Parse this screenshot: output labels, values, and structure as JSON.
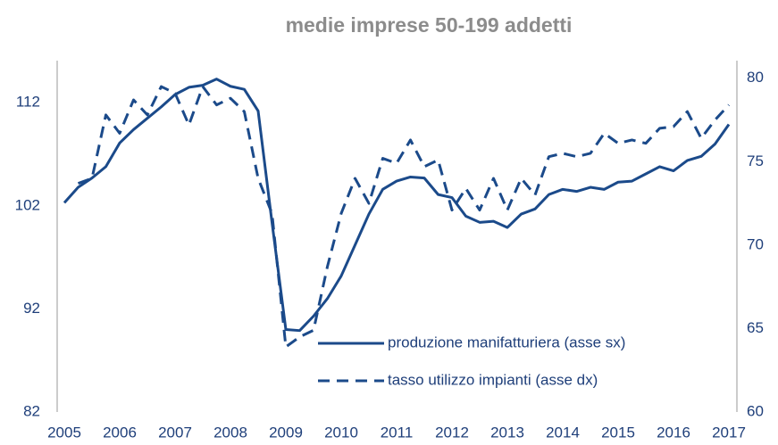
{
  "chart_data": {
    "type": "line",
    "title": "medie imprese 50-199 addetti",
    "x": [
      2005,
      2005.25,
      2005.5,
      2005.75,
      2006,
      2006.25,
      2006.5,
      2006.75,
      2007,
      2007.25,
      2007.5,
      2007.75,
      2008,
      2008.25,
      2008.5,
      2008.75,
      2009,
      2009.25,
      2009.5,
      2009.75,
      2010,
      2010.25,
      2010.5,
      2010.75,
      2011,
      2011.25,
      2011.5,
      2011.75,
      2012,
      2012.25,
      2012.5,
      2012.75,
      2013,
      2013.25,
      2013.5,
      2013.75,
      2014,
      2014.25,
      2014.5,
      2014.75,
      2015,
      2015.25,
      2015.5,
      2015.75,
      2016,
      2016.25,
      2016.5,
      2016.75,
      2017
    ],
    "series": [
      {
        "name": "produzione manifatturiera (asse sx)",
        "color": "#1b4a8a",
        "dash": false,
        "values": [
          102.3,
          103.8,
          104.7,
          105.8,
          108.1,
          109.4,
          110.5,
          111.6,
          112.8,
          113.5,
          113.7,
          114.3,
          113.6,
          113.3,
          111.2,
          100.4,
          90.0,
          89.9,
          91.3,
          93.0,
          95.2,
          98.2,
          101.2,
          103.6,
          104.4,
          104.8,
          104.7,
          103.1,
          102.8,
          101.0,
          100.4,
          100.5,
          99.9,
          101.2,
          101.7,
          103.1,
          103.6,
          103.4,
          103.8,
          103.6,
          104.3,
          104.4,
          105.1,
          105.8,
          105.4,
          106.4,
          106.8,
          108.0,
          109.9
        ]
      },
      {
        "name": "tasso utilizzo impianti (asse dx)",
        "color": "#1b4a8a",
        "dash": true,
        "axis": "y2",
        "values": [
          null,
          73.7,
          74.0,
          77.8,
          76.7,
          78.7,
          77.8,
          79.5,
          79.1,
          77.2,
          79.5,
          78.4,
          78.8,
          78.0,
          74.0,
          71.9,
          63.9,
          64.5,
          64.9,
          68.7,
          71.9,
          74.0,
          72.5,
          75.2,
          74.9,
          76.3,
          74.7,
          75.1,
          72.1,
          73.4,
          72.1,
          74.0,
          72.1,
          74.0,
          73.0,
          75.3,
          75.5,
          75.3,
          75.5,
          76.7,
          76.1,
          76.3,
          76.1,
          77.0,
          77.1,
          78.0,
          76.4,
          77.5,
          78.4
        ]
      }
    ],
    "xlim": [
      2005,
      2017
    ],
    "xticks": [
      2005,
      2006,
      2007,
      2008,
      2009,
      2010,
      2011,
      2012,
      2013,
      2014,
      2015,
      2016,
      2017
    ],
    "ylim": [
      82,
      116
    ],
    "yticks": [
      82,
      92,
      102,
      112
    ],
    "y2lim": [
      60,
      81
    ],
    "y2ticks": [
      60,
      65,
      70,
      75,
      80
    ]
  }
}
